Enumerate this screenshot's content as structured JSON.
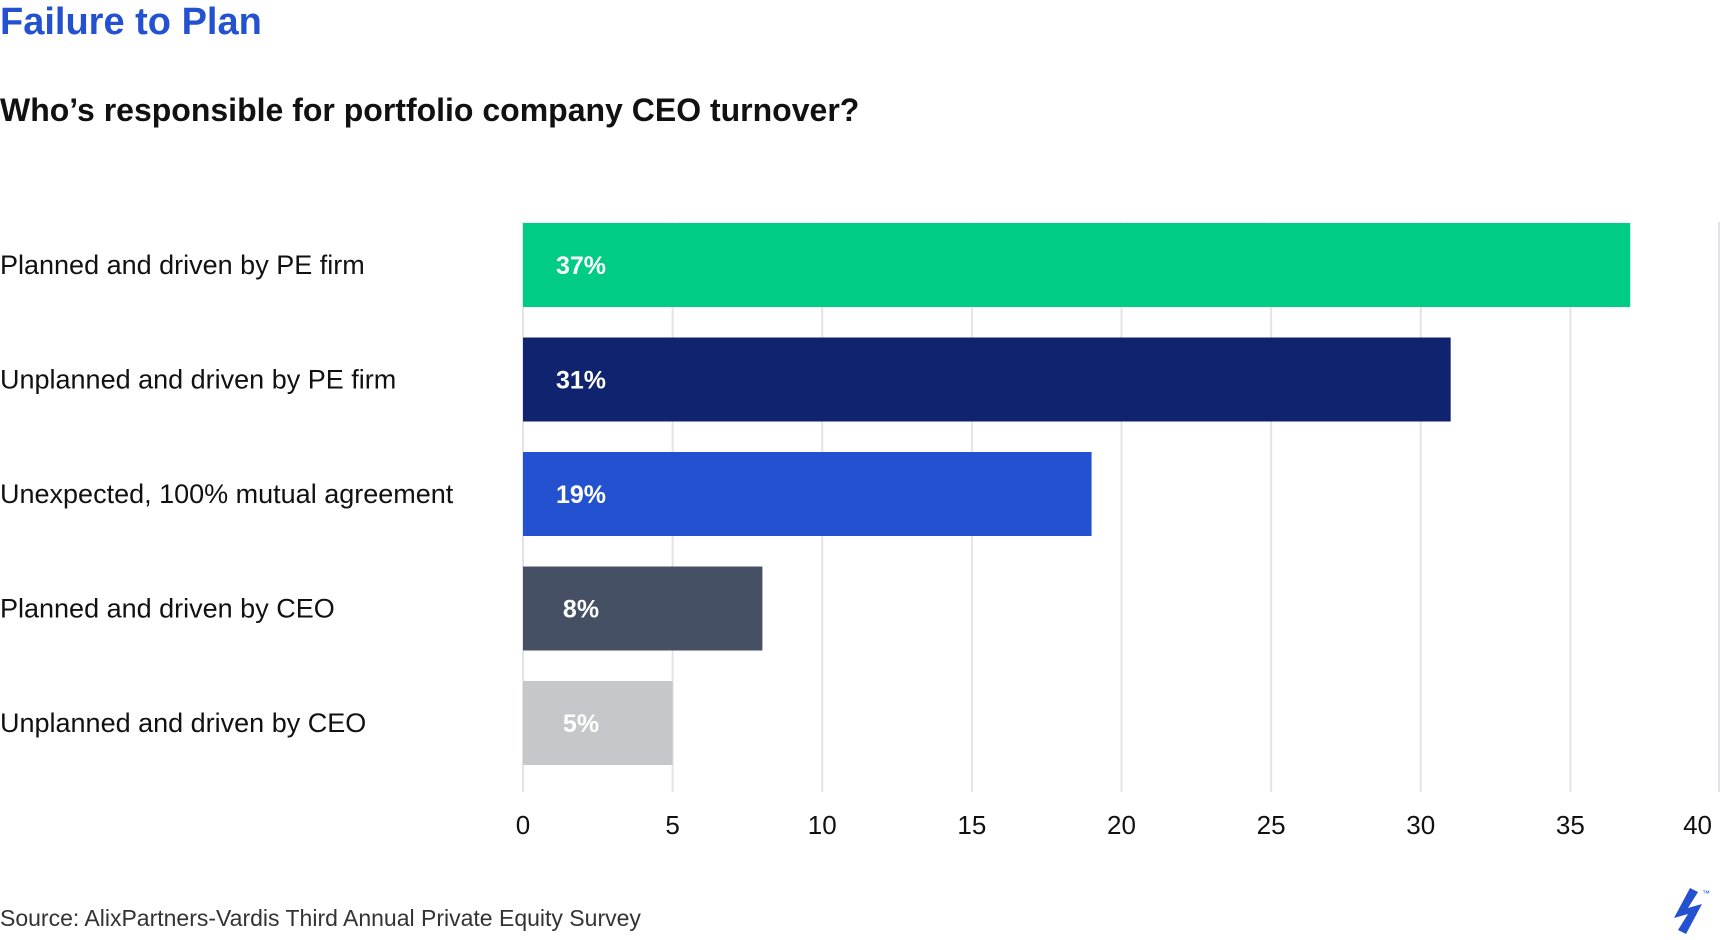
{
  "title": "Failure to Plan",
  "subtitle": "Who’s responsible for portfolio company CEO turnover?",
  "source": "Source: AlixPartners-Vardis Third Annual Private Equity Survey",
  "colors": {
    "title": "#2351d0",
    "grid": "#e4e4e8",
    "bar_label": "#ffffff",
    "text": "#111111"
  },
  "chart_data": {
    "type": "bar",
    "orientation": "horizontal",
    "title": "",
    "xlabel": "",
    "ylabel": "",
    "categories": [
      "Planned and driven by PE firm",
      "Unplanned and driven by PE firm",
      "Unexpected, 100% mutual agreement",
      "Planned and driven by CEO",
      "Unplanned and driven by CEO"
    ],
    "values": [
      37,
      31,
      19,
      8,
      5
    ],
    "value_labels": [
      "37%",
      "31%",
      "19%",
      "8%",
      "5%"
    ],
    "bar_colors": [
      "#00cc85",
      "#10236e",
      "#2351d0",
      "#465064",
      "#c6c7cb"
    ],
    "xlim": [
      0,
      40
    ],
    "xticks": [
      0,
      5,
      10,
      15,
      20,
      25,
      30,
      35,
      40
    ],
    "grid": true,
    "legend": "none"
  }
}
